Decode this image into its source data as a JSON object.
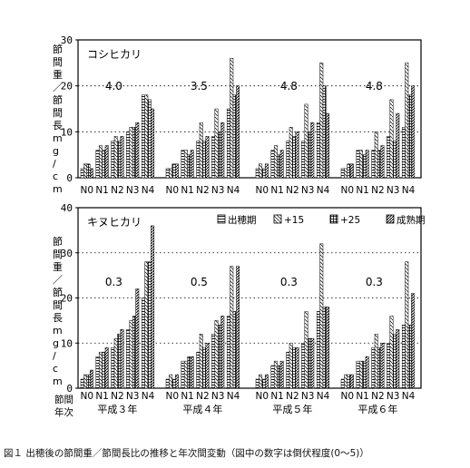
{
  "figure": {
    "caption": "図１ 出穂後の節間重／節間長比の推移と年次間変動（図中の数字は倒伏程度(0〜5)）"
  },
  "chart_data": [
    {
      "type": "bar",
      "title": "コシヒカリ",
      "ylabel": "節間重／節間長 mg/cm",
      "ylim": [
        0,
        30
      ],
      "yticks": [
        0,
        10,
        20,
        30
      ],
      "categories": [
        "N0",
        "N1",
        "N2",
        "N3",
        "N4"
      ],
      "groups": [
        {
          "year": "平成３年",
          "lodging": "4.0",
          "values": [
            [
              2,
              3,
              3,
              2
            ],
            [
              6,
              7,
              6,
              7
            ],
            [
              8,
              9,
              8,
              9
            ],
            [
              10,
              11,
              11,
              12
            ],
            [
              18,
              18,
              17,
              15
            ]
          ]
        },
        {
          "year": "平成４年",
          "lodging": "3.5",
          "values": [
            [
              2,
              2,
              3,
              3
            ],
            [
              6,
              6,
              5,
              6
            ],
            [
              8,
              12,
              8,
              9
            ],
            [
              9,
              15,
              10,
              12
            ],
            [
              15,
              26,
              18,
              20
            ]
          ]
        },
        {
          "year": "平成５年",
          "lodging": "4.8",
          "values": [
            [
              2,
              3,
              2,
              3
            ],
            [
              6,
              7,
              5,
              6
            ],
            [
              8,
              11,
              9,
              10
            ],
            [
              8,
              16,
              10,
              12
            ],
            [
              12,
              25,
              20,
              14
            ]
          ]
        },
        {
          "year": "平成６年",
          "lodging": "4.8",
          "values": [
            [
              2,
              2,
              3,
              3
            ],
            [
              6,
              6,
              5,
              6
            ],
            [
              6,
              10,
              6,
              7
            ],
            [
              9,
              17,
              8,
              14
            ],
            [
              11,
              25,
              18,
              20
            ]
          ]
        }
      ]
    },
    {
      "type": "bar",
      "title": "キヌヒカリ",
      "ylabel": "節間重／節間長 mg/cm",
      "ylim": [
        0,
        40
      ],
      "yticks": [
        0,
        10,
        20,
        30,
        40
      ],
      "categories": [
        "N0",
        "N1",
        "N2",
        "N3",
        "N4"
      ],
      "legend": [
        "出穂期",
        "+15",
        "+25",
        "成熟期"
      ],
      "groups": [
        {
          "year": "平成３年",
          "lodging": "0.3",
          "values": [
            [
              2,
              3,
              3,
              4
            ],
            [
              7,
              8,
              8,
              9
            ],
            [
              9,
              11,
              12,
              13
            ],
            [
              13,
              15,
              16,
              22
            ],
            [
              20,
              28,
              28,
              36
            ]
          ]
        },
        {
          "year": "平成４年",
          "lodging": "0.5",
          "values": [
            [
              2,
              3,
              2,
              3
            ],
            [
              6,
              6,
              7,
              7
            ],
            [
              8,
              12,
              9,
              10
            ],
            [
              12,
              15,
              14,
              16
            ],
            [
              16,
              27,
              17,
              27
            ]
          ]
        },
        {
          "year": "平成５年",
          "lodging": "0.3",
          "values": [
            [
              2,
              3,
              2,
              3
            ],
            [
              5,
              6,
              5,
              6
            ],
            [
              8,
              10,
              9,
              9
            ],
            [
              10,
              17,
              11,
              11
            ],
            [
              17,
              32,
              18,
              18
            ]
          ]
        },
        {
          "year": "平成６年",
          "lodging": "0.3",
          "values": [
            [
              2,
              3,
              3,
              3
            ],
            [
              6,
              6,
              6,
              7
            ],
            [
              9,
              12,
              9,
              10
            ],
            [
              10,
              16,
              12,
              13
            ],
            [
              14,
              28,
              14,
              21
            ]
          ]
        }
      ],
      "x_axis_caption": "節間 年次"
    }
  ]
}
